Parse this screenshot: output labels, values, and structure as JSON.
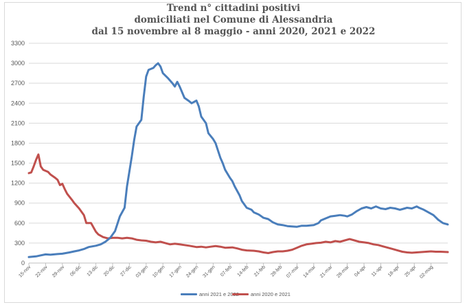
{
  "chart_data": {
    "type": "line",
    "title": [
      "Trend n° cittadini positivi",
      "domiciliati nel Comune di Alessandria",
      "dal 15 novembre al 8 maggio - anni 2020, 2021 e 2022"
    ],
    "ylim": [
      0,
      3300
    ],
    "yticks": [
      0,
      300,
      600,
      900,
      1200,
      1500,
      1800,
      2100,
      2400,
      2700,
      3000,
      3300
    ],
    "grid": true,
    "legend": "bottom",
    "x_days": 175,
    "xticks": [
      {
        "day": 0,
        "label": "15-nov"
      },
      {
        "day": 7,
        "label": "22-nov"
      },
      {
        "day": 14,
        "label": "29-nov"
      },
      {
        "day": 21,
        "label": "06-dic"
      },
      {
        "day": 28,
        "label": "13-dic"
      },
      {
        "day": 35,
        "label": "20-dic"
      },
      {
        "day": 42,
        "label": "27-dic"
      },
      {
        "day": 49,
        "label": "03-gen"
      },
      {
        "day": 56,
        "label": "10-gen"
      },
      {
        "day": 63,
        "label": "17-gen"
      },
      {
        "day": 70,
        "label": "24-gen"
      },
      {
        "day": 77,
        "label": "31-gen"
      },
      {
        "day": 84,
        "label": "07-feb"
      },
      {
        "day": 91,
        "label": "14-feb"
      },
      {
        "day": 98,
        "label": "21-feb"
      },
      {
        "day": 105,
        "label": "28-feb"
      },
      {
        "day": 112,
        "label": "07-mar"
      },
      {
        "day": 119,
        "label": "14-mar"
      },
      {
        "day": 126,
        "label": "21-mar"
      },
      {
        "day": 133,
        "label": "28-mar"
      },
      {
        "day": 140,
        "label": "04-apr"
      },
      {
        "day": 147,
        "label": "11-apr"
      },
      {
        "day": 154,
        "label": "18-apr"
      },
      {
        "day": 161,
        "label": "25-apr"
      },
      {
        "day": 168,
        "label": "02-mag"
      }
    ],
    "series": [
      {
        "name": "anni 2021 e 2022",
        "color": "#4a7ebb",
        "points": [
          [
            0,
            90
          ],
          [
            3,
            100
          ],
          [
            5,
            115
          ],
          [
            7,
            130
          ],
          [
            9,
            125
          ],
          [
            12,
            135
          ],
          [
            14,
            140
          ],
          [
            17,
            160
          ],
          [
            19,
            175
          ],
          [
            21,
            190
          ],
          [
            23,
            210
          ],
          [
            25,
            240
          ],
          [
            28,
            260
          ],
          [
            30,
            280
          ],
          [
            32,
            320
          ],
          [
            34,
            380
          ],
          [
            36,
            480
          ],
          [
            38,
            700
          ],
          [
            40,
            830
          ],
          [
            41,
            1150
          ],
          [
            43,
            1600
          ],
          [
            44,
            1850
          ],
          [
            45,
            2050
          ],
          [
            47,
            2150
          ],
          [
            48,
            2500
          ],
          [
            49,
            2800
          ],
          [
            50,
            2900
          ],
          [
            52,
            2930
          ],
          [
            53,
            2970
          ],
          [
            54,
            3000
          ],
          [
            55,
            2950
          ],
          [
            56,
            2850
          ],
          [
            58,
            2780
          ],
          [
            60,
            2700
          ],
          [
            61,
            2650
          ],
          [
            62,
            2720
          ],
          [
            63,
            2650
          ],
          [
            65,
            2480
          ],
          [
            67,
            2430
          ],
          [
            68,
            2400
          ],
          [
            70,
            2440
          ],
          [
            71,
            2350
          ],
          [
            72,
            2200
          ],
          [
            74,
            2100
          ],
          [
            75,
            1950
          ],
          [
            77,
            1860
          ],
          [
            78,
            1800
          ],
          [
            80,
            1580
          ],
          [
            81,
            1500
          ],
          [
            82,
            1400
          ],
          [
            84,
            1280
          ],
          [
            85,
            1230
          ],
          [
            86,
            1150
          ],
          [
            88,
            1020
          ],
          [
            89,
            930
          ],
          [
            91,
            830
          ],
          [
            93,
            800
          ],
          [
            94,
            760
          ],
          [
            96,
            730
          ],
          [
            98,
            680
          ],
          [
            100,
            660
          ],
          [
            102,
            610
          ],
          [
            104,
            580
          ],
          [
            106,
            570
          ],
          [
            108,
            555
          ],
          [
            110,
            550
          ],
          [
            112,
            545
          ],
          [
            114,
            560
          ],
          [
            116,
            560
          ],
          [
            119,
            570
          ],
          [
            121,
            600
          ],
          [
            122,
            640
          ],
          [
            124,
            670
          ],
          [
            126,
            700
          ],
          [
            128,
            710
          ],
          [
            130,
            720
          ],
          [
            132,
            710
          ],
          [
            133,
            700
          ],
          [
            135,
            730
          ],
          [
            137,
            780
          ],
          [
            139,
            820
          ],
          [
            141,
            840
          ],
          [
            143,
            820
          ],
          [
            145,
            850
          ],
          [
            147,
            820
          ],
          [
            149,
            810
          ],
          [
            151,
            830
          ],
          [
            153,
            820
          ],
          [
            155,
            800
          ],
          [
            156,
            810
          ],
          [
            158,
            830
          ],
          [
            160,
            820
          ],
          [
            162,
            850
          ],
          [
            163,
            830
          ],
          [
            165,
            800
          ],
          [
            167,
            760
          ],
          [
            169,
            720
          ],
          [
            171,
            650
          ],
          [
            173,
            600
          ],
          [
            175,
            580
          ]
        ]
      },
      {
        "name": "anni 2020 e 2021",
        "color": "#c0504d",
        "points": [
          [
            0,
            1350
          ],
          [
            1,
            1360
          ],
          [
            2,
            1450
          ],
          [
            3,
            1550
          ],
          [
            4,
            1630
          ],
          [
            5,
            1450
          ],
          [
            6,
            1400
          ],
          [
            8,
            1370
          ],
          [
            9,
            1330
          ],
          [
            11,
            1280
          ],
          [
            12,
            1250
          ],
          [
            13,
            1170
          ],
          [
            14,
            1190
          ],
          [
            15,
            1110
          ],
          [
            16,
            1040
          ],
          [
            18,
            950
          ],
          [
            19,
            900
          ],
          [
            21,
            820
          ],
          [
            23,
            720
          ],
          [
            24,
            600
          ],
          [
            26,
            600
          ],
          [
            28,
            470
          ],
          [
            29,
            430
          ],
          [
            31,
            390
          ],
          [
            33,
            370
          ],
          [
            35,
            380
          ],
          [
            37,
            380
          ],
          [
            39,
            370
          ],
          [
            41,
            380
          ],
          [
            43,
            370
          ],
          [
            45,
            350
          ],
          [
            47,
            340
          ],
          [
            49,
            335
          ],
          [
            51,
            320
          ],
          [
            53,
            310
          ],
          [
            55,
            320
          ],
          [
            57,
            300
          ],
          [
            59,
            280
          ],
          [
            61,
            290
          ],
          [
            63,
            280
          ],
          [
            65,
            270
          ],
          [
            67,
            260
          ],
          [
            70,
            240
          ],
          [
            72,
            245
          ],
          [
            74,
            235
          ],
          [
            76,
            245
          ],
          [
            78,
            255
          ],
          [
            80,
            245
          ],
          [
            82,
            230
          ],
          [
            85,
            235
          ],
          [
            87,
            220
          ],
          [
            89,
            200
          ],
          [
            91,
            190
          ],
          [
            94,
            185
          ],
          [
            96,
            175
          ],
          [
            98,
            160
          ],
          [
            100,
            150
          ],
          [
            102,
            165
          ],
          [
            104,
            175
          ],
          [
            106,
            175
          ],
          [
            108,
            185
          ],
          [
            110,
            200
          ],
          [
            112,
            230
          ],
          [
            114,
            260
          ],
          [
            116,
            280
          ],
          [
            118,
            290
          ],
          [
            120,
            300
          ],
          [
            122,
            305
          ],
          [
            124,
            320
          ],
          [
            126,
            310
          ],
          [
            128,
            330
          ],
          [
            130,
            320
          ],
          [
            132,
            340
          ],
          [
            134,
            360
          ],
          [
            136,
            340
          ],
          [
            138,
            320
          ],
          [
            140,
            310
          ],
          [
            142,
            300
          ],
          [
            144,
            280
          ],
          [
            146,
            270
          ],
          [
            148,
            250
          ],
          [
            150,
            230
          ],
          [
            152,
            210
          ],
          [
            154,
            190
          ],
          [
            156,
            170
          ],
          [
            158,
            160
          ],
          [
            160,
            155
          ],
          [
            162,
            160
          ],
          [
            164,
            165
          ],
          [
            166,
            170
          ],
          [
            168,
            175
          ],
          [
            170,
            170
          ],
          [
            172,
            170
          ],
          [
            175,
            165
          ]
        ]
      }
    ]
  }
}
